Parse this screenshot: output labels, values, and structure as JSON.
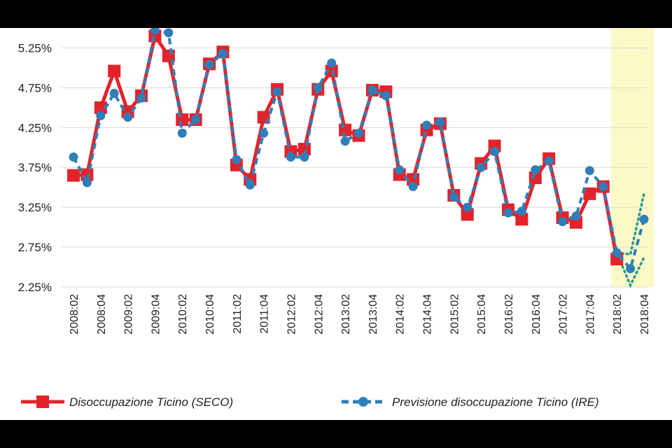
{
  "chart_data": {
    "type": "line",
    "title": "",
    "xlabel": "",
    "ylabel": "",
    "ylim": [
      2.25,
      5.5
    ],
    "y_ticks": [
      "5.25%",
      "4.75%",
      "4.25%",
      "3.75%",
      "3.25%",
      "2.75%",
      "2.25%"
    ],
    "y_tick_values": [
      5.25,
      4.75,
      4.25,
      3.75,
      3.25,
      2.75,
      2.25
    ],
    "x": [
      "2008:02",
      "2008:03",
      "2008:04",
      "2009:01",
      "2009:02",
      "2009:03",
      "2009:04",
      "2010:01",
      "2010:02",
      "2010:03",
      "2010:04",
      "2011:01",
      "2011:02",
      "2011:03",
      "2011:04",
      "2012:01",
      "2012:02",
      "2012:03",
      "2012:04",
      "2013:01",
      "2013:02",
      "2013:03",
      "2013:04",
      "2014:01",
      "2014:02",
      "2014:03",
      "2014:04",
      "2015:01",
      "2015:02",
      "2015:03",
      "2015:04",
      "2016:01",
      "2016:02",
      "2016:03",
      "2016:04",
      "2017:01",
      "2017:02",
      "2017:03",
      "2017:04",
      "2018:01",
      "2018:02",
      "2018:03",
      "2018:04"
    ],
    "x_tick_labels": [
      "2008:02",
      "2008:04",
      "2009:02",
      "2009:04",
      "2010:02",
      "2010:04",
      "2011:02",
      "2011:04",
      "2012:02",
      "2012:04",
      "2013:02",
      "2013:04",
      "2014:02",
      "2014:04",
      "2015:02",
      "2015:04",
      "2016:02",
      "2016:04",
      "2017:02",
      "2017:04",
      "2018:02",
      "2018:04"
    ],
    "forecast_highlight": [
      "2018:02",
      "2018:04"
    ],
    "highlight_color": "#fbf9c8",
    "grid": true,
    "legend_position": "bottom",
    "series": [
      {
        "name": "Disoccupazione Ticino (SECO)",
        "color": "#e3232b",
        "style": "solid-square",
        "values": [
          3.65,
          3.66,
          4.5,
          4.96,
          4.45,
          4.65,
          5.4,
          5.15,
          4.35,
          4.35,
          5.05,
          5.2,
          3.78,
          3.6,
          4.38,
          4.73,
          3.95,
          3.98,
          4.73,
          4.96,
          4.22,
          4.15,
          4.72,
          4.7,
          3.66,
          3.6,
          4.22,
          4.3,
          3.4,
          3.16,
          3.8,
          4.02,
          3.22,
          3.1,
          3.62,
          3.86,
          3.12,
          3.06,
          3.42,
          3.51,
          2.6,
          null,
          null
        ]
      },
      {
        "name": "Previsione disoccupazione Ticino (IRE)",
        "color": "#2e7fb8",
        "style": "dashed-circle",
        "values": [
          3.88,
          3.56,
          4.4,
          4.68,
          4.38,
          4.62,
          5.47,
          5.44,
          4.18,
          4.35,
          5.04,
          5.18,
          3.85,
          3.53,
          4.18,
          4.7,
          3.88,
          3.88,
          4.75,
          5.06,
          4.08,
          4.18,
          4.72,
          4.65,
          3.72,
          3.51,
          4.28,
          4.32,
          3.38,
          3.25,
          3.75,
          3.95,
          3.18,
          3.2,
          3.72,
          3.83,
          3.07,
          3.14,
          3.71,
          3.51,
          2.68,
          2.48,
          3.1
        ]
      }
    ],
    "forecast_band": {
      "color": "#2e9a8e",
      "lower": [
        2.68,
        2.27,
        2.62
      ],
      "upper": [
        2.68,
        2.66,
        3.42
      ]
    }
  }
}
